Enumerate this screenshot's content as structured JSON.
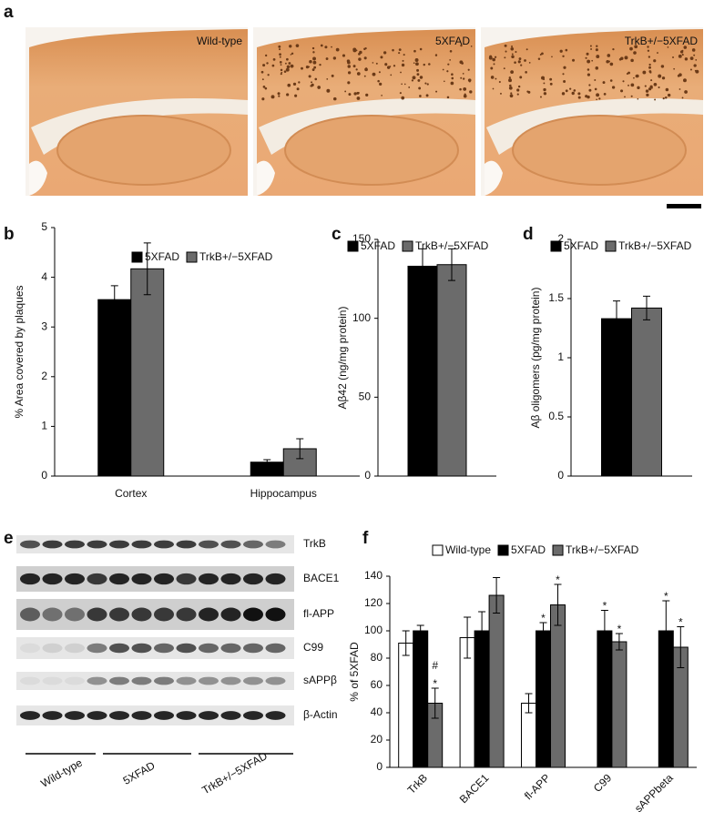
{
  "panel_a": {
    "letter": "a",
    "labels": [
      "Wild-type",
      "5XFAD",
      "TrkB+/−5XFAD"
    ]
  },
  "panel_e": {
    "letter": "e",
    "bands": [
      "TrkB",
      "BACE1",
      "fl-APP",
      "C99",
      "sAPPβ",
      "β-Actin"
    ],
    "groups": [
      "Wild-type",
      "5XFAD",
      "TrkB+/−5XFAD"
    ]
  },
  "chart_data": [
    {
      "type": "bar",
      "panel": "b",
      "ylabel": "% Area covered by plaques",
      "categories": [
        "Cortex",
        "Hippocampus"
      ],
      "series": [
        {
          "name": "5XFAD",
          "color": "#000000",
          "values": [
            3.55,
            0.28
          ],
          "errors": [
            0.28,
            0.05
          ]
        },
        {
          "name": "TrkB+/−5XFAD",
          "color": "#6b6b6b",
          "values": [
            4.17,
            0.55
          ],
          "errors": [
            0.52,
            0.2
          ]
        }
      ],
      "ylim": [
        0,
        5
      ],
      "yticks": [
        0,
        1,
        2,
        3,
        4,
        5
      ]
    },
    {
      "type": "bar",
      "panel": "c",
      "ylabel": "Aβ42 (ng/mg protein)",
      "categories": [
        null
      ],
      "series": [
        {
          "name": "5XFAD",
          "color": "#000000",
          "values": [
            133
          ],
          "errors": [
            11
          ]
        },
        {
          "name": "TrkB+/−5XFAD",
          "color": "#6b6b6b",
          "values": [
            134
          ],
          "errors": [
            10
          ]
        }
      ],
      "ylim": [
        0,
        150
      ],
      "yticks": [
        0,
        50,
        100,
        150
      ]
    },
    {
      "type": "bar",
      "panel": "d",
      "ylabel": "Aβ oligomers (pg/mg protein)",
      "categories": [
        null
      ],
      "series": [
        {
          "name": "5XFAD",
          "color": "#000000",
          "values": [
            1.33
          ],
          "errors": [
            0.15
          ]
        },
        {
          "name": "TrkB+/−5XFAD",
          "color": "#6b6b6b",
          "values": [
            1.42
          ],
          "errors": [
            0.1
          ]
        }
      ],
      "ylim": [
        0,
        2
      ],
      "yticks": [
        0,
        0.5,
        1,
        1.5,
        2
      ]
    },
    {
      "type": "bar",
      "panel": "f",
      "ylabel": "% of 5XFAD",
      "categories": [
        "TrkB",
        "BACE1",
        "fl-APP",
        "C99",
        "sAPPbeta"
      ],
      "series": [
        {
          "name": "Wild-type",
          "color": "#ffffff",
          "values": [
            91,
            95,
            47,
            0,
            0
          ],
          "errors": [
            9,
            15,
            7,
            0,
            0
          ],
          "significance": [
            null,
            null,
            null,
            null,
            null
          ]
        },
        {
          "name": "5XFAD",
          "color": "#000000",
          "values": [
            100,
            100,
            100,
            100,
            100
          ],
          "errors": [
            4,
            14,
            6,
            15,
            22
          ],
          "significance": [
            null,
            null,
            "*",
            "*",
            "*"
          ]
        },
        {
          "name": "TrkB+/−5XFAD",
          "color": "#6b6b6b",
          "values": [
            47,
            126,
            119,
            92,
            88
          ],
          "errors": [
            11,
            13,
            15,
            6,
            15
          ],
          "significance": [
            "*",
            null,
            "*",
            "*",
            "*"
          ],
          "significance_vs_5xfad": [
            "#",
            null,
            null,
            null,
            null
          ]
        }
      ],
      "ylim": [
        0,
        140
      ],
      "yticks": [
        0,
        20,
        40,
        60,
        80,
        100,
        120,
        140
      ]
    }
  ]
}
